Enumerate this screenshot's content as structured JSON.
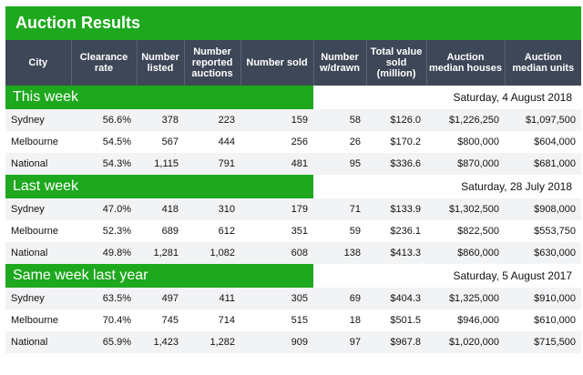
{
  "title": "Auction Results",
  "headers": [
    "City",
    "Clearance rate",
    "Number listed",
    "Number reported auctions",
    "Number sold",
    "Number w/drawn",
    "Total value sold (million)",
    "Auction median houses",
    "Auction median units"
  ],
  "sections": [
    {
      "name": "This week",
      "date": "Saturday, 4 August 2018",
      "rows": [
        [
          "Sydney",
          "56.6%",
          "378",
          "223",
          "159",
          "58",
          "$126.0",
          "$1,226,250",
          "$1,097,500"
        ],
        [
          "Melbourne",
          "54.5%",
          "567",
          "444",
          "256",
          "26",
          "$170.2",
          "$800,000",
          "$604,000"
        ],
        [
          "National",
          "54.3%",
          "1,115",
          "791",
          "481",
          "95",
          "$336.6",
          "$870,000",
          "$681,000"
        ]
      ]
    },
    {
      "name": "Last week",
      "date": "Saturday, 28 July 2018",
      "rows": [
        [
          "Sydney",
          "47.0%",
          "418",
          "310",
          "179",
          "71",
          "$133.9",
          "$1,302,500",
          "$908,000"
        ],
        [
          "Melbourne",
          "52.3%",
          "689",
          "612",
          "351",
          "59",
          "$236.1",
          "$822,500",
          "$553,750"
        ],
        [
          "National",
          "49.8%",
          "1,281",
          "1,082",
          "608",
          "138",
          "$413.3",
          "$860,000",
          "$630,000"
        ]
      ]
    },
    {
      "name": "Same week last year",
      "date": "Saturday, 5 August 2017",
      "rows": [
        [
          "Sydney",
          "63.5%",
          "497",
          "411",
          "305",
          "69",
          "$404.3",
          "$1,325,000",
          "$910,000"
        ],
        [
          "Melbourne",
          "70.4%",
          "745",
          "714",
          "515",
          "18",
          "$501.5",
          "$946,000",
          "$610,000"
        ],
        [
          "National",
          "65.9%",
          "1,423",
          "1,282",
          "909",
          "97",
          "$967.8",
          "$1,020,000",
          "$715,500"
        ]
      ]
    }
  ]
}
